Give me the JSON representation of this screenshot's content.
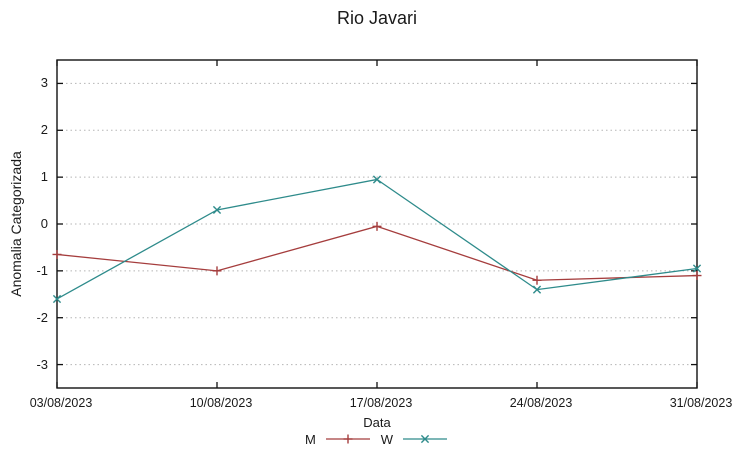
{
  "chart_data": {
    "type": "line",
    "title": "Rio Javari",
    "xlabel": "Data",
    "ylabel": "Anomalia Categorizada",
    "categories": [
      "03/08/2023",
      "10/08/2023",
      "17/08/2023",
      "24/08/2023",
      "31/08/2023"
    ],
    "series": [
      {
        "name": "M",
        "color": "#a53d3d",
        "marker": "plus",
        "values": [
          -0.65,
          -1.0,
          -0.05,
          -1.2,
          -1.1
        ]
      },
      {
        "name": "W",
        "color": "#2e8b8b",
        "marker": "cross",
        "values": [
          -1.6,
          0.3,
          0.95,
          -1.4,
          -0.95
        ]
      }
    ],
    "yticks": [
      -3,
      -2,
      -1,
      0,
      1,
      2,
      3
    ],
    "ylim": [
      -3.5,
      3.5
    ],
    "grid": "horizontal-dotted",
    "legend_position": "bottom-center",
    "colors": {
      "border": "#111111",
      "gridline": "#b5b5b5",
      "text": "#1a1a1a",
      "background": "#ffffff"
    }
  }
}
